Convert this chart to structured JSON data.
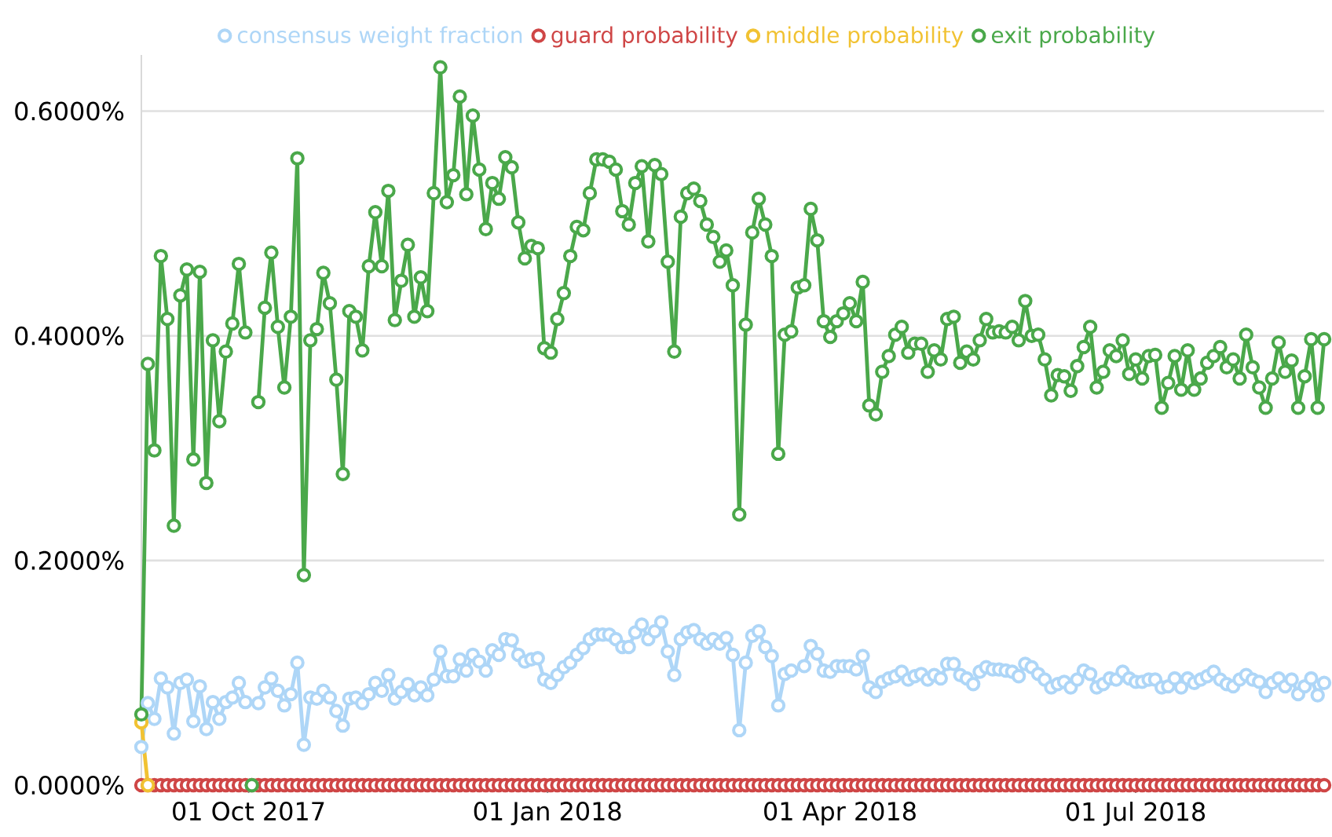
{
  "chart_data": {
    "type": "line",
    "xlim": [
      "2017-08-29",
      "2018-08-28"
    ],
    "xticks": [
      {
        "value": "2017-10-01",
        "label": "01 Oct 2017"
      },
      {
        "value": "2018-01-01",
        "label": "01 Jan 2018"
      },
      {
        "value": "2018-04-01",
        "label": "01 Apr 2018"
      },
      {
        "value": "2018-07-01",
        "label": "01 Jul 2018"
      }
    ],
    "ylim": [
      0,
      0.65
    ],
    "yticks": [
      {
        "value": 0,
        "label": "0.0000%"
      },
      {
        "value": 0.2,
        "label": "0.2000%"
      },
      {
        "value": 0.4,
        "label": "0.4000%"
      },
      {
        "value": 0.6,
        "label": "0.6000%"
      }
    ],
    "grid": "y",
    "legend": "top",
    "marker": "circle",
    "x": [
      "2017-08-29",
      "2017-08-31",
      "2017-09-02",
      "2017-09-04",
      "2017-09-06",
      "2017-09-08",
      "2017-09-10",
      "2017-09-12",
      "2017-09-14",
      "2017-09-16",
      "2017-09-18",
      "2017-09-20",
      "2017-09-22",
      "2017-09-24",
      "2017-09-26",
      "2017-09-28",
      "2017-09-30",
      "2017-10-02",
      "2017-10-04",
      "2017-10-06",
      "2017-10-08",
      "2017-10-10",
      "2017-10-12",
      "2017-10-14",
      "2017-10-16",
      "2017-10-18",
      "2017-10-20",
      "2017-10-22",
      "2017-10-24",
      "2017-10-26",
      "2017-10-28",
      "2017-10-30",
      "2017-11-01",
      "2017-11-03",
      "2017-11-05",
      "2017-11-07",
      "2017-11-09",
      "2017-11-11",
      "2017-11-13",
      "2017-11-15",
      "2017-11-17",
      "2017-11-19",
      "2017-11-21",
      "2017-11-23",
      "2017-11-25",
      "2017-11-27",
      "2017-11-29",
      "2017-12-01",
      "2017-12-03",
      "2017-12-05",
      "2017-12-07",
      "2017-12-09",
      "2017-12-11",
      "2017-12-13",
      "2017-12-15",
      "2017-12-17",
      "2017-12-19",
      "2017-12-21",
      "2017-12-23",
      "2017-12-25",
      "2017-12-27",
      "2017-12-29",
      "2017-12-31",
      "2018-01-02",
      "2018-01-04",
      "2018-01-06",
      "2018-01-08",
      "2018-01-10",
      "2018-01-12",
      "2018-01-14",
      "2018-01-16",
      "2018-01-18",
      "2018-01-20",
      "2018-01-22",
      "2018-01-24",
      "2018-01-26",
      "2018-01-28",
      "2018-01-30",
      "2018-02-01",
      "2018-02-03",
      "2018-02-05",
      "2018-02-07",
      "2018-02-09",
      "2018-02-11",
      "2018-02-13",
      "2018-02-15",
      "2018-02-17",
      "2018-02-19",
      "2018-02-21",
      "2018-02-23",
      "2018-02-25",
      "2018-02-27",
      "2018-03-01",
      "2018-03-03",
      "2018-03-05",
      "2018-03-07",
      "2018-03-09",
      "2018-03-11",
      "2018-03-13",
      "2018-03-15",
      "2018-03-17",
      "2018-03-19",
      "2018-03-21",
      "2018-03-23",
      "2018-03-25",
      "2018-03-27",
      "2018-03-29",
      "2018-03-31",
      "2018-04-02",
      "2018-04-04",
      "2018-04-06",
      "2018-04-08",
      "2018-04-10",
      "2018-04-12",
      "2018-04-14",
      "2018-04-16",
      "2018-04-18",
      "2018-04-20",
      "2018-04-22",
      "2018-04-24",
      "2018-04-26",
      "2018-04-28",
      "2018-04-30",
      "2018-05-02",
      "2018-05-04",
      "2018-05-06",
      "2018-05-08",
      "2018-05-10",
      "2018-05-12",
      "2018-05-14",
      "2018-05-16",
      "2018-05-18",
      "2018-05-20",
      "2018-05-22",
      "2018-05-24",
      "2018-05-26",
      "2018-05-28",
      "2018-05-30",
      "2018-06-01",
      "2018-06-03",
      "2018-06-05",
      "2018-06-07",
      "2018-06-09",
      "2018-06-11",
      "2018-06-13",
      "2018-06-15",
      "2018-06-17",
      "2018-06-19",
      "2018-06-21",
      "2018-06-23",
      "2018-06-25",
      "2018-06-27",
      "2018-06-29",
      "2018-07-01",
      "2018-07-03",
      "2018-07-05",
      "2018-07-07",
      "2018-07-09",
      "2018-07-11",
      "2018-07-13",
      "2018-07-15",
      "2018-07-17",
      "2018-07-19",
      "2018-07-21",
      "2018-07-23",
      "2018-07-25",
      "2018-07-27",
      "2018-07-29",
      "2018-07-31",
      "2018-08-02",
      "2018-08-04",
      "2018-08-06",
      "2018-08-08",
      "2018-08-10",
      "2018-08-12",
      "2018-08-14",
      "2018-08-16",
      "2018-08-18",
      "2018-08-20",
      "2018-08-22",
      "2018-08-24",
      "2018-08-26",
      "2018-08-28"
    ],
    "series": [
      {
        "name": "consensus weight fraction",
        "color": "#aed6f7",
        "x": [
          "2017-08-29",
          "2017-08-31",
          "2017-09-02",
          "2017-09-04",
          "2017-09-06",
          "2017-09-08",
          "2017-09-10",
          "2017-09-12",
          "2017-09-14",
          "2017-09-16",
          "2017-09-18",
          "2017-09-20",
          "2017-09-22",
          "2017-09-24",
          "2017-09-26",
          "2017-09-28",
          "2017-09-30",
          "2017-10-04",
          "2017-10-06",
          "2017-10-08",
          "2017-10-10",
          "2017-10-12",
          "2017-10-14",
          "2017-10-16",
          "2017-10-18",
          "2017-10-20",
          "2017-10-22",
          "2017-10-24",
          "2017-10-26",
          "2017-10-28",
          "2017-10-30",
          "2017-11-01",
          "2017-11-03",
          "2017-11-05",
          "2017-11-07",
          "2017-11-09",
          "2017-11-11",
          "2017-11-13",
          "2017-11-15",
          "2017-11-17",
          "2017-11-19",
          "2017-11-21",
          "2017-11-23",
          "2017-11-25",
          "2017-11-27",
          "2017-11-29",
          "2017-12-01",
          "2017-12-03",
          "2017-12-05",
          "2017-12-07",
          "2017-12-09",
          "2017-12-11",
          "2017-12-13",
          "2017-12-15",
          "2017-12-17",
          "2017-12-19",
          "2017-12-21",
          "2017-12-23",
          "2017-12-25",
          "2017-12-27",
          "2017-12-29",
          "2017-12-31",
          "2018-01-02",
          "2018-01-04",
          "2018-01-06",
          "2018-01-08",
          "2018-01-10",
          "2018-01-12",
          "2018-01-14",
          "2018-01-16",
          "2018-01-18",
          "2018-01-20",
          "2018-01-22",
          "2018-01-24",
          "2018-01-26",
          "2018-01-28",
          "2018-01-30",
          "2018-02-01",
          "2018-02-03",
          "2018-02-05",
          "2018-02-07",
          "2018-02-09",
          "2018-02-11",
          "2018-02-13",
          "2018-02-15",
          "2018-02-17",
          "2018-02-19",
          "2018-02-21",
          "2018-02-23",
          "2018-02-25",
          "2018-02-27",
          "2018-03-01",
          "2018-03-03",
          "2018-03-05",
          "2018-03-07",
          "2018-03-09",
          "2018-03-11",
          "2018-03-13",
          "2018-03-15",
          "2018-03-17",
          "2018-03-21",
          "2018-03-23",
          "2018-03-25",
          "2018-03-27",
          "2018-03-29",
          "2018-03-31",
          "2018-04-02",
          "2018-04-04",
          "2018-04-06",
          "2018-04-08",
          "2018-04-10",
          "2018-04-12",
          "2018-04-14",
          "2018-04-16",
          "2018-04-18",
          "2018-04-20",
          "2018-04-22",
          "2018-04-24",
          "2018-04-26",
          "2018-04-28",
          "2018-04-30",
          "2018-05-02",
          "2018-05-04",
          "2018-05-06",
          "2018-05-08",
          "2018-05-10",
          "2018-05-12",
          "2018-05-14",
          "2018-05-16",
          "2018-05-18",
          "2018-05-20",
          "2018-05-22",
          "2018-05-24",
          "2018-05-26",
          "2018-05-28",
          "2018-05-30",
          "2018-06-01",
          "2018-06-03",
          "2018-06-05",
          "2018-06-07",
          "2018-06-09",
          "2018-06-11",
          "2018-06-13",
          "2018-06-15",
          "2018-06-17",
          "2018-06-19",
          "2018-06-21",
          "2018-06-23",
          "2018-06-25",
          "2018-06-27",
          "2018-06-29",
          "2018-07-01",
          "2018-07-03",
          "2018-07-05",
          "2018-07-07",
          "2018-07-09",
          "2018-07-11",
          "2018-07-13",
          "2018-07-15",
          "2018-07-17",
          "2018-07-19",
          "2018-07-21",
          "2018-07-23",
          "2018-07-25",
          "2018-07-27",
          "2018-07-29",
          "2018-07-31",
          "2018-08-02",
          "2018-08-04",
          "2018-08-06",
          "2018-08-08",
          "2018-08-10",
          "2018-08-12",
          "2018-08-14",
          "2018-08-16",
          "2018-08-18",
          "2018-08-20",
          "2018-08-22",
          "2018-08-24",
          "2018-08-26",
          "2018-08-28"
        ],
        "values": [
          0.034,
          0.073,
          0.059,
          0.095,
          0.087,
          0.046,
          0.091,
          0.094,
          0.057,
          0.088,
          0.05,
          0.074,
          0.059,
          0.074,
          0.078,
          0.091,
          0.074,
          0.073,
          0.087,
          0.095,
          0.084,
          0.071,
          0.081,
          0.109,
          0.036,
          0.078,
          0.077,
          0.084,
          0.078,
          0.066,
          0.053,
          0.077,
          0.078,
          0.073,
          0.081,
          0.091,
          0.084,
          0.098,
          0.077,
          0.083,
          0.09,
          0.08,
          0.087,
          0.08,
          0.094,
          0.119,
          0.097,
          0.097,
          0.112,
          0.102,
          0.116,
          0.11,
          0.102,
          0.12,
          0.116,
          0.13,
          0.129,
          0.116,
          0.11,
          0.112,
          0.113,
          0.094,
          0.091,
          0.098,
          0.105,
          0.109,
          0.116,
          0.122,
          0.13,
          0.134,
          0.134,
          0.134,
          0.13,
          0.123,
          0.123,
          0.136,
          0.143,
          0.13,
          0.137,
          0.145,
          0.119,
          0.098,
          0.13,
          0.136,
          0.138,
          0.13,
          0.126,
          0.13,
          0.126,
          0.131,
          0.116,
          0.049,
          0.109,
          0.133,
          0.137,
          0.123,
          0.115,
          0.071,
          0.099,
          0.102,
          0.106,
          0.124,
          0.117,
          0.102,
          0.101,
          0.106,
          0.106,
          0.106,
          0.103,
          0.115,
          0.087,
          0.083,
          0.092,
          0.095,
          0.097,
          0.101,
          0.094,
          0.097,
          0.099,
          0.094,
          0.098,
          0.095,
          0.108,
          0.108,
          0.098,
          0.095,
          0.09,
          0.101,
          0.105,
          0.103,
          0.103,
          0.102,
          0.101,
          0.097,
          0.108,
          0.105,
          0.099,
          0.094,
          0.087,
          0.09,
          0.092,
          0.087,
          0.094,
          0.102,
          0.099,
          0.087,
          0.09,
          0.095,
          0.094,
          0.101,
          0.095,
          0.092,
          0.092,
          0.094,
          0.094,
          0.087,
          0.088,
          0.095,
          0.087,
          0.095,
          0.091,
          0.094,
          0.097,
          0.101,
          0.094,
          0.09,
          0.088,
          0.094,
          0.098,
          0.094,
          0.092,
          0.083,
          0.091,
          0.095,
          0.088,
          0.094,
          0.081,
          0.088,
          0.095,
          0.08,
          0.091
        ]
      },
      {
        "name": "guard probability",
        "color": "#cf4646",
        "values": [
          0,
          0,
          0,
          0,
          0,
          0,
          0,
          0,
          0,
          0,
          0,
          0,
          0,
          0,
          0,
          0,
          0,
          0,
          0,
          0,
          0,
          0,
          0,
          0,
          0,
          0,
          0,
          0,
          0,
          0,
          0,
          0,
          0,
          0,
          0,
          0,
          0,
          0,
          0,
          0,
          0,
          0,
          0,
          0,
          0,
          0,
          0,
          0,
          0,
          0,
          0,
          0,
          0,
          0,
          0,
          0,
          0,
          0,
          0,
          0,
          0,
          0,
          0,
          0,
          0,
          0,
          0,
          0,
          0,
          0,
          0,
          0,
          0,
          0,
          0,
          0,
          0,
          0,
          0,
          0,
          0,
          0,
          0,
          0,
          0,
          0,
          0,
          0,
          0,
          0,
          0,
          0,
          0,
          0,
          0,
          0,
          0,
          0,
          0,
          0,
          0,
          0,
          0,
          0,
          0,
          0,
          0,
          0,
          0,
          0,
          0,
          0,
          0,
          0,
          0,
          0,
          0,
          0,
          0,
          0,
          0,
          0,
          0,
          0,
          0,
          0,
          0,
          0,
          0,
          0,
          0,
          0,
          0,
          0,
          0,
          0,
          0,
          0,
          0,
          0,
          0,
          0,
          0,
          0,
          0,
          0,
          0,
          0,
          0,
          0,
          0,
          0,
          0,
          0,
          0,
          0,
          0,
          0,
          0,
          0,
          0,
          0,
          0,
          0,
          0,
          0,
          0,
          0,
          0,
          0,
          0,
          0,
          0,
          0,
          0,
          0,
          0,
          0,
          0,
          0,
          0,
          0,
          0
        ]
      },
      {
        "name": "middle probability",
        "color": "#f1c232",
        "x": [
          "2017-08-29",
          "2017-08-31"
        ],
        "values": [
          0.056,
          0
        ]
      },
      {
        "name": "exit probability",
        "color": "#4aa84a",
        "x": [
          "2017-08-29",
          "2017-08-31",
          "2017-09-02",
          "2017-09-04",
          "2017-09-06",
          "2017-09-08",
          "2017-09-10",
          "2017-09-12",
          "2017-09-14",
          "2017-09-16",
          "2017-09-18",
          "2017-09-20",
          "2017-09-22",
          "2017-09-24",
          "2017-09-26",
          "2017-09-28",
          "2017-09-30",
          "2017-10-01",
          "2017-10-02",
          "2017-10-03",
          "2017-10-04",
          "2017-10-06",
          "2017-10-08",
          "2017-10-10",
          "2017-10-12",
          "2017-10-14",
          "2017-10-16",
          "2017-10-18",
          "2017-10-20",
          "2017-10-22",
          "2017-10-24",
          "2017-10-26",
          "2017-10-28",
          "2017-10-30",
          "2017-11-01",
          "2017-11-03",
          "2017-11-05",
          "2017-11-07",
          "2017-11-09",
          "2017-11-11",
          "2017-11-13",
          "2017-11-15",
          "2017-11-17",
          "2017-11-19",
          "2017-11-21",
          "2017-11-23",
          "2017-11-25",
          "2017-11-27",
          "2017-11-29",
          "2017-12-01",
          "2017-12-03",
          "2017-12-05",
          "2017-12-07",
          "2017-12-09",
          "2017-12-11",
          "2017-12-13",
          "2017-12-15",
          "2017-12-17",
          "2017-12-19",
          "2017-12-21",
          "2017-12-23",
          "2017-12-25",
          "2017-12-27",
          "2017-12-29",
          "2017-12-31",
          "2018-01-02",
          "2018-01-04",
          "2018-01-06",
          "2018-01-08",
          "2018-01-10",
          "2018-01-12",
          "2018-01-14",
          "2018-01-16",
          "2018-01-18",
          "2018-01-20",
          "2018-01-22",
          "2018-01-24",
          "2018-01-26",
          "2018-01-28",
          "2018-01-30",
          "2018-02-01",
          "2018-02-03",
          "2018-02-05",
          "2018-02-07",
          "2018-02-09",
          "2018-02-11",
          "2018-02-13",
          "2018-02-15",
          "2018-02-17",
          "2018-02-19",
          "2018-02-21",
          "2018-02-23",
          "2018-02-25",
          "2018-02-27",
          "2018-03-01",
          "2018-03-03",
          "2018-03-05",
          "2018-03-07",
          "2018-03-09",
          "2018-03-11",
          "2018-03-13",
          "2018-03-15",
          "2018-03-17",
          "2018-03-19",
          "2018-03-21",
          "2018-03-23",
          "2018-03-25",
          "2018-03-27",
          "2018-03-29",
          "2018-03-31",
          "2018-04-02",
          "2018-04-04",
          "2018-04-06",
          "2018-04-08",
          "2018-04-10",
          "2018-04-12",
          "2018-04-14",
          "2018-04-16",
          "2018-04-18",
          "2018-04-20",
          "2018-04-22",
          "2018-04-24",
          "2018-04-26",
          "2018-04-28",
          "2018-04-30",
          "2018-05-02",
          "2018-05-04",
          "2018-05-06",
          "2018-05-08",
          "2018-05-10",
          "2018-05-12",
          "2018-05-14",
          "2018-05-16",
          "2018-05-18",
          "2018-05-20",
          "2018-05-22",
          "2018-05-24",
          "2018-05-26",
          "2018-05-28",
          "2018-05-30",
          "2018-06-01",
          "2018-06-03",
          "2018-06-05",
          "2018-06-07",
          "2018-06-09",
          "2018-06-11",
          "2018-06-13",
          "2018-06-15",
          "2018-06-17",
          "2018-06-19",
          "2018-06-21",
          "2018-06-23",
          "2018-06-25",
          "2018-06-27",
          "2018-06-29",
          "2018-07-01",
          "2018-07-03",
          "2018-07-05",
          "2018-07-07",
          "2018-07-09",
          "2018-07-11",
          "2018-07-13",
          "2018-07-15",
          "2018-07-17",
          "2018-07-19",
          "2018-07-21",
          "2018-07-23",
          "2018-07-25",
          "2018-07-27",
          "2018-07-29",
          "2018-07-31",
          "2018-08-02",
          "2018-08-04",
          "2018-08-06",
          "2018-08-08",
          "2018-08-10",
          "2018-08-12",
          "2018-08-14",
          "2018-08-16",
          "2018-08-18",
          "2018-08-20",
          "2018-08-22",
          "2018-08-24",
          "2018-08-26",
          "2018-08-28"
        ],
        "values": [
          0.063,
          0.375,
          0.298,
          0.471,
          0.415,
          0.231,
          0.436,
          0.459,
          0.29,
          0.457,
          0.269,
          0.396,
          0.324,
          0.386,
          0.411,
          0.464,
          0.403,
          null,
          0,
          null,
          0.341,
          0.425,
          0.474,
          0.408,
          0.354,
          0.417,
          0.558,
          0.187,
          0.396,
          0.406,
          0.456,
          0.429,
          0.361,
          0.277,
          0.422,
          0.417,
          0.387,
          0.462,
          0.51,
          0.462,
          0.529,
          0.414,
          0.449,
          0.481,
          0.417,
          0.452,
          0.422,
          0.527,
          0.639,
          0.519,
          0.543,
          0.613,
          0.526,
          0.596,
          0.548,
          0.495,
          0.536,
          0.522,
          0.559,
          0.55,
          0.501,
          0.469,
          0.48,
          0.478,
          0.389,
          0.385,
          0.415,
          0.438,
          0.471,
          0.497,
          0.494,
          0.527,
          0.557,
          0.557,
          0.555,
          0.548,
          0.511,
          0.499,
          0.536,
          0.551,
          0.484,
          0.552,
          0.544,
          0.466,
          0.386,
          0.506,
          0.527,
          0.531,
          0.52,
          0.499,
          0.488,
          0.466,
          0.476,
          0.445,
          0.241,
          0.41,
          0.492,
          0.522,
          0.499,
          0.471,
          0.295,
          0.401,
          0.404,
          0.443,
          0.445,
          0.513,
          0.485,
          0.413,
          0.399,
          0.413,
          0.42,
          0.429,
          0.413,
          0.448,
          0.338,
          0.33,
          0.368,
          0.382,
          0.401,
          0.408,
          0.385,
          0.393,
          0.393,
          0.368,
          0.387,
          0.379,
          0.415,
          0.417,
          0.376,
          0.386,
          0.379,
          0.396,
          0.415,
          0.403,
          0.404,
          0.403,
          0.408,
          0.396,
          0.431,
          0.4,
          0.401,
          0.379,
          0.347,
          0.365,
          0.364,
          0.351,
          0.373,
          0.39,
          0.408,
          0.354,
          0.368,
          0.387,
          0.382,
          0.396,
          0.366,
          0.379,
          0.362,
          0.382,
          0.383,
          0.336,
          0.358,
          0.382,
          0.352,
          0.387,
          0.352,
          0.362,
          0.376,
          0.382,
          0.39,
          0.372,
          0.379,
          0.362,
          0.401,
          0.372,
          0.354,
          0.336,
          0.362,
          0.394,
          0.368,
          0.378,
          0.336,
          0.364,
          0.397,
          0.336,
          0.397
        ]
      }
    ]
  }
}
